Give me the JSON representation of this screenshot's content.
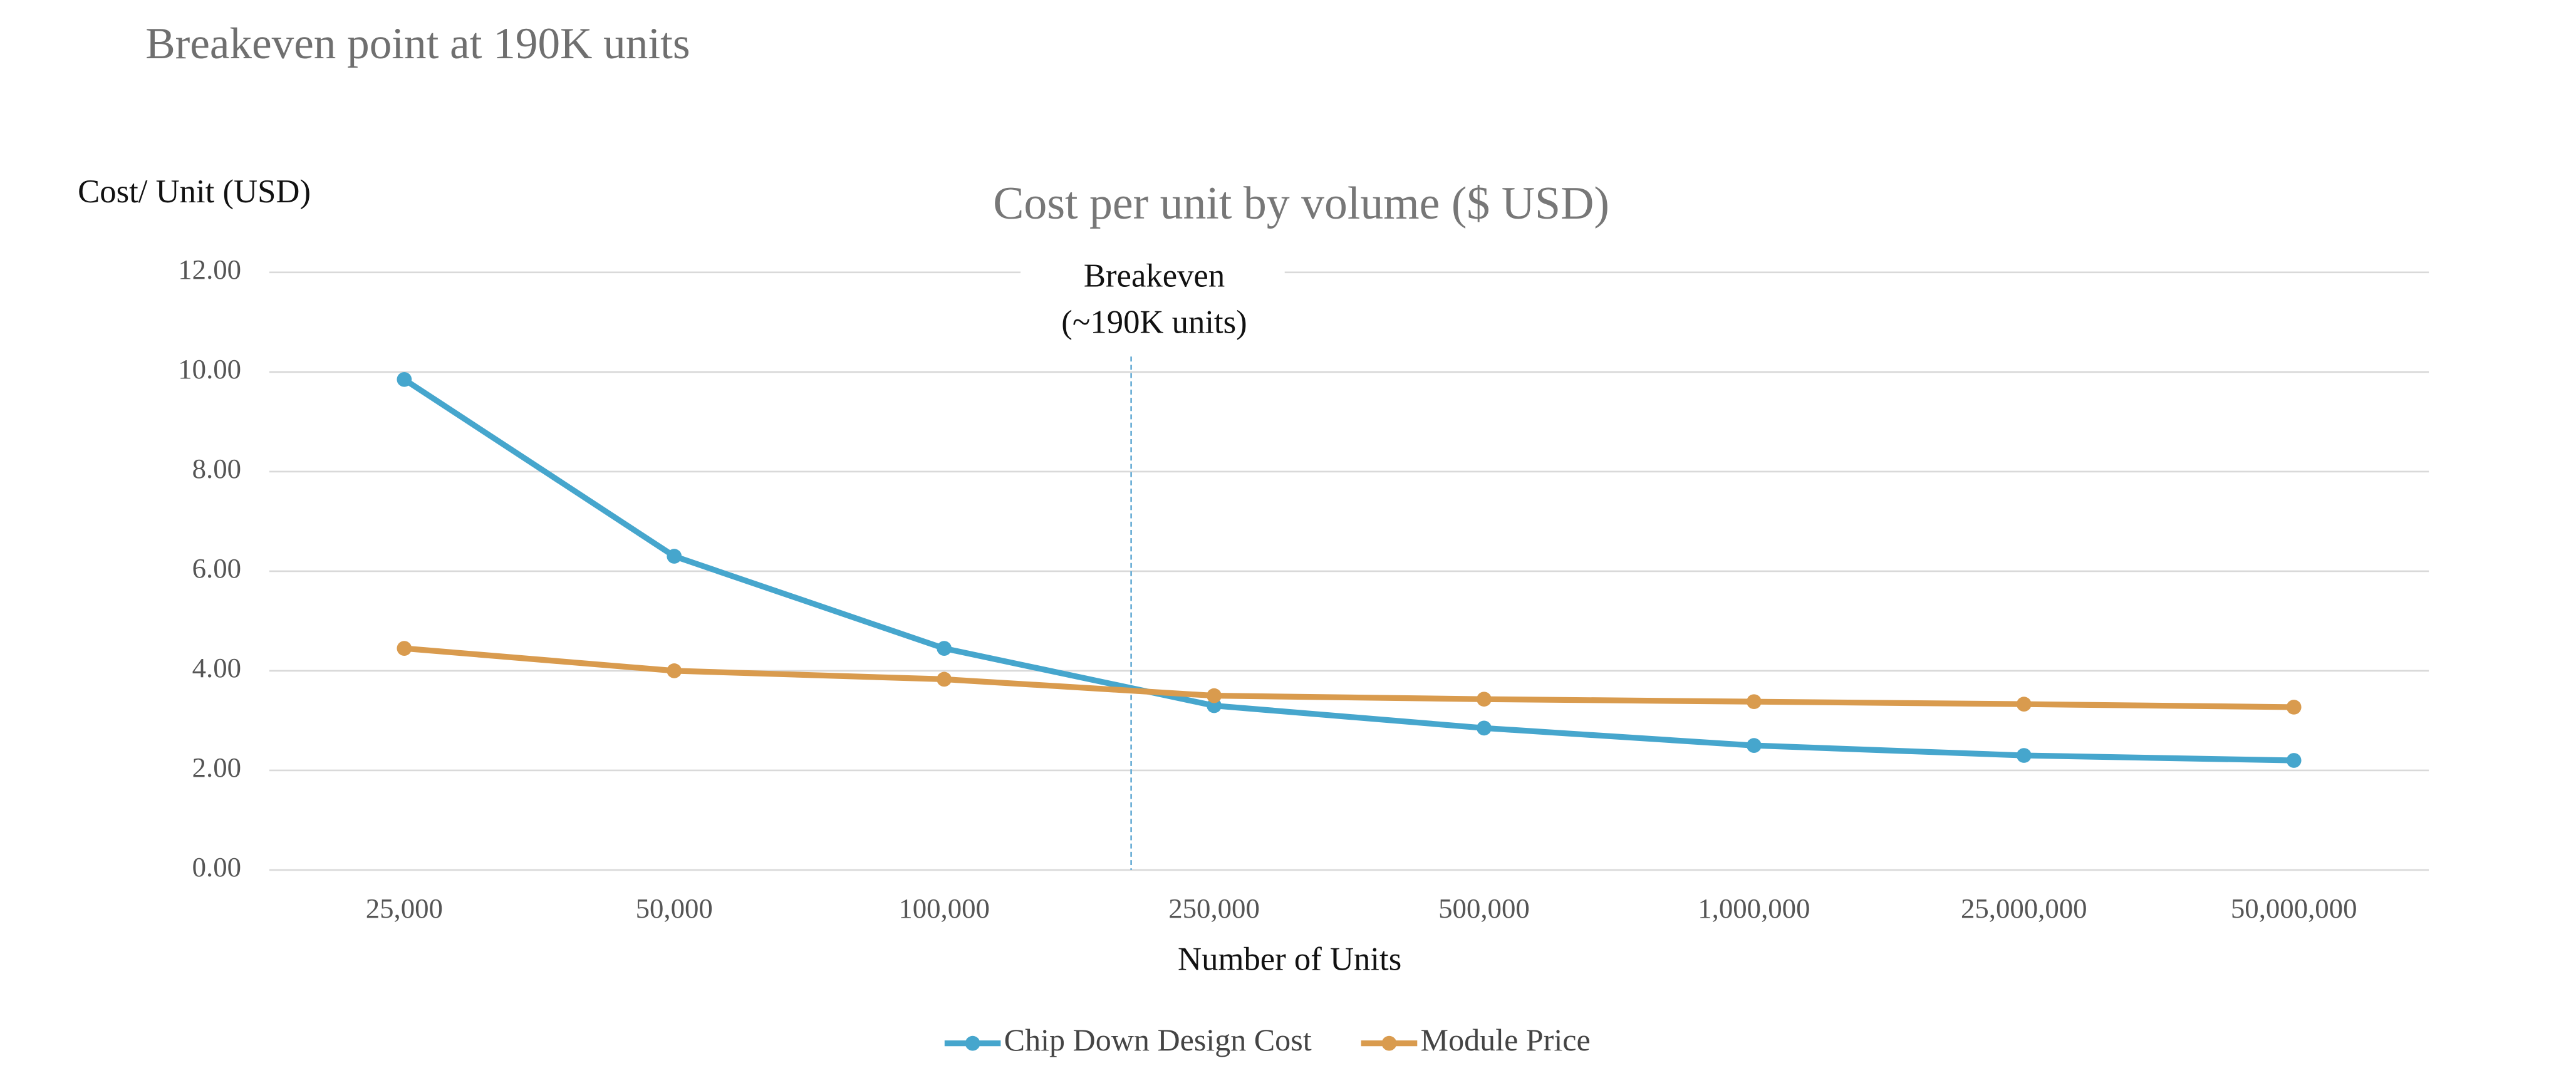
{
  "header": {
    "title": "Breakeven point at 190K units"
  },
  "chart_data": {
    "type": "line",
    "title": "Cost per unit by volume ($ USD)",
    "y_label": "Cost/ Unit (USD)",
    "x_label": "Number of Units",
    "annotation": [
      "Breakeven",
      "(~190K units)"
    ],
    "categories": [
      "25,000",
      "50,000",
      "100,000",
      "250,000",
      "500,000",
      "1,000,000",
      "25,000,000",
      "50,000,000"
    ],
    "series": [
      {
        "name": "Chip Down Design Cost",
        "color": "#46a6cd",
        "values": [
          9.85,
          6.3,
          4.45,
          3.3,
          2.85,
          2.5,
          2.3,
          2.2
        ]
      },
      {
        "name": "Module Price",
        "color": "#d99b4e",
        "values": [
          4.45,
          4.0,
          3.83,
          3.5,
          3.43,
          3.38,
          3.33,
          3.27
        ]
      }
    ],
    "ylim": [
      0,
      12
    ],
    "yticks": [
      {
        "value": 0,
        "label": "0.00"
      },
      {
        "value": 2,
        "label": "2.00"
      },
      {
        "value": 4,
        "label": "4.00"
      },
      {
        "value": 6,
        "label": "6.00"
      },
      {
        "value": 8,
        "label": "8.00"
      },
      {
        "value": 10,
        "label": "10.00"
      },
      {
        "value": 12,
        "label": "12.00"
      }
    ],
    "grid": true,
    "legend": "bottom"
  }
}
